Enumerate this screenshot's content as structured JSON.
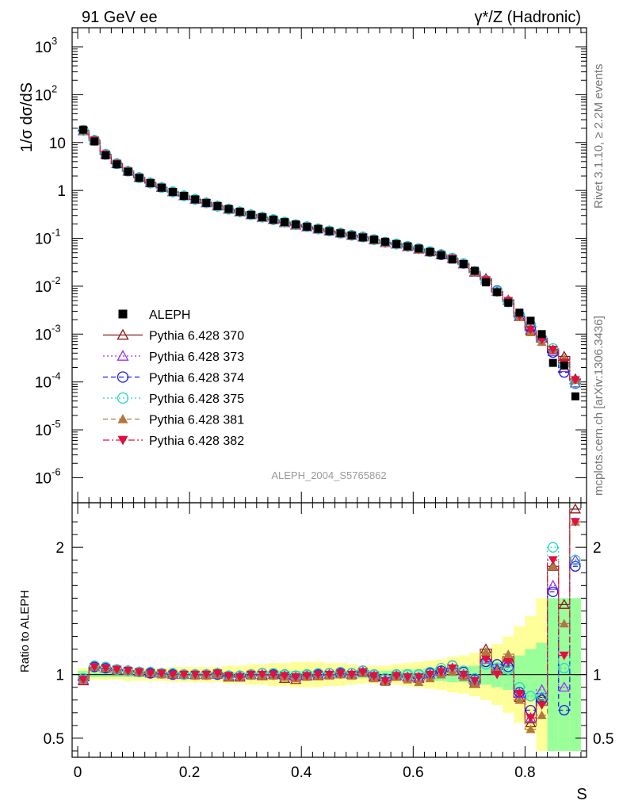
{
  "header": {
    "left": "91 GeV ee",
    "right": "γ*/Z (Hadronic)",
    "side_top": "Rivet 3.1.10, ≥ 2.2M events",
    "side_bottom": "mcplots.cern.ch [arXiv:1306.3436]",
    "analysis": "ALEPH_2004_S5765862"
  },
  "colors": {
    "data": "#000000",
    "p370": "#8b1a1a",
    "p373": "#9b30ff",
    "p374": "#1a1aee",
    "p375": "#20d8c0",
    "p381": "#b07840",
    "p382": "#e01040",
    "band_yellow": "#ffff99",
    "band_green": "#99ff99"
  },
  "chart_data": {
    "type": "scatter",
    "title": "",
    "xlabel": "S",
    "ylabel_main": "1/σ  dσ/dS",
    "ylabel_ratio": "Ratio to ALEPH",
    "xlim": [
      -0.01,
      0.91
    ],
    "ylim_main": [
      3e-07,
      2500
    ],
    "ylim_ratio": [
      0.35,
      2.35
    ],
    "x_ticks": [
      "0",
      "0.2",
      "0.4",
      "0.6",
      "0.8"
    ],
    "x_tick_values": [
      0,
      0.2,
      0.4,
      0.6,
      0.8
    ],
    "y_ticks_main": [
      "10^3",
      "10^2",
      "10",
      "1",
      "10^-1",
      "10^-2",
      "10^-3",
      "10^-4",
      "10^-5",
      "10^-6"
    ],
    "y_ticks_ratio": [
      "2",
      "1",
      "0.5"
    ],
    "x": [
      0.01,
      0.03,
      0.05,
      0.07,
      0.09,
      0.11,
      0.13,
      0.15,
      0.17,
      0.19,
      0.21,
      0.23,
      0.25,
      0.27,
      0.29,
      0.31,
      0.33,
      0.35,
      0.37,
      0.39,
      0.41,
      0.43,
      0.45,
      0.47,
      0.49,
      0.51,
      0.53,
      0.55,
      0.57,
      0.59,
      0.61,
      0.63,
      0.65,
      0.67,
      0.69,
      0.71,
      0.73,
      0.75,
      0.77,
      0.79,
      0.81,
      0.83,
      0.85,
      0.87,
      0.89
    ],
    "data_values": [
      18.5,
      10.5,
      5.4,
      3.5,
      2.45,
      1.82,
      1.42,
      1.14,
      0.93,
      0.77,
      0.65,
      0.55,
      0.47,
      0.41,
      0.36,
      0.31,
      0.275,
      0.245,
      0.218,
      0.195,
      0.175,
      0.157,
      0.141,
      0.127,
      0.115,
      0.104,
      0.094,
      0.085,
      0.076,
      0.068,
      0.061,
      0.052,
      0.044,
      0.036,
      0.029,
      0.021,
      0.012,
      0.0075,
      0.0045,
      0.0028,
      0.0019,
      0.001,
      0.00025,
      0.00022,
      5e-05
    ],
    "ratio_band_inner": [
      0.03,
      0.02,
      0.02,
      0.02,
      0.02,
      0.02,
      0.02,
      0.02,
      0.02,
      0.02,
      0.02,
      0.02,
      0.02,
      0.02,
      0.02,
      0.02,
      0.03,
      0.03,
      0.03,
      0.03,
      0.03,
      0.03,
      0.03,
      0.03,
      0.03,
      0.03,
      0.03,
      0.03,
      0.03,
      0.04,
      0.04,
      0.05,
      0.05,
      0.06,
      0.06,
      0.07,
      0.08,
      0.1,
      0.12,
      0.15,
      0.2,
      0.25,
      0.6,
      0.6,
      0.6
    ],
    "ratio_band_outer": [
      0.05,
      0.04,
      0.04,
      0.04,
      0.05,
      0.05,
      0.05,
      0.05,
      0.06,
      0.06,
      0.06,
      0.06,
      0.06,
      0.07,
      0.07,
      0.08,
      0.08,
      0.09,
      0.09,
      0.1,
      0.1,
      0.1,
      0.09,
      0.09,
      0.08,
      0.07,
      0.07,
      0.07,
      0.08,
      0.09,
      0.1,
      0.11,
      0.12,
      0.14,
      0.15,
      0.17,
      0.2,
      0.24,
      0.3,
      0.38,
      0.46,
      0.6,
      0.6,
      0.6,
      0.6
    ],
    "series": [
      {
        "name": "ALEPH",
        "key": "data",
        "marker": "square-filled",
        "line": "none"
      },
      {
        "name": "Pythia 6.428 370",
        "key": "p370",
        "marker": "triangle-up-open",
        "line": "solid",
        "ratio": [
          0.95,
          1.06,
          1.05,
          1.03,
          1.03,
          1.02,
          1.02,
          1.01,
          1.01,
          1.0,
          1.0,
          1.0,
          1.01,
          0.98,
          0.98,
          1.0,
          0.99,
          1.0,
          0.97,
          0.96,
          0.99,
          0.99,
          1.0,
          1.01,
          1.0,
          1.02,
          0.98,
          0.95,
          0.99,
          0.98,
          0.97,
          1.0,
          1.03,
          1.05,
          1.0,
          0.93,
          1.2,
          1.04,
          1.14,
          0.82,
          0.62,
          0.82,
          1.85,
          1.55,
          2.3
        ]
      },
      {
        "name": "Pythia 6.428 373",
        "key": "p373",
        "marker": "triangle-up-open",
        "line": "dotted",
        "ratio": [
          0.96,
          1.06,
          1.05,
          1.04,
          1.03,
          1.02,
          1.01,
          1.01,
          1.0,
          1.0,
          1.0,
          1.0,
          1.0,
          0.99,
          0.99,
          1.0,
          1.0,
          1.0,
          0.99,
          0.98,
          0.99,
          1.0,
          1.0,
          1.01,
          1.0,
          1.02,
          0.99,
          0.96,
          0.99,
          0.98,
          0.98,
          1.0,
          1.02,
          1.05,
          1.0,
          0.95,
          1.12,
          1.05,
          1.1,
          0.85,
          0.66,
          0.88,
          1.7,
          0.9,
          1.9
        ]
      },
      {
        "name": "Pythia 6.428 374",
        "key": "p374",
        "marker": "circle-open",
        "line": "dashed",
        "ratio": [
          0.97,
          1.06,
          1.05,
          1.04,
          1.03,
          1.02,
          1.01,
          1.01,
          1.0,
          1.0,
          1.0,
          1.0,
          1.0,
          0.99,
          0.99,
          1.0,
          1.01,
          1.0,
          1.0,
          0.99,
          1.0,
          1.0,
          1.01,
          1.01,
          1.01,
          1.03,
          1.0,
          0.97,
          1.0,
          1.0,
          1.0,
          1.01,
          1.03,
          1.07,
          1.02,
          0.96,
          1.1,
          1.08,
          1.06,
          0.86,
          0.72,
          0.8,
          1.65,
          0.72,
          1.85
        ]
      },
      {
        "name": "Pythia 6.428 375",
        "key": "p375",
        "marker": "circle-open",
        "line": "dotted",
        "ratio": [
          0.97,
          1.07,
          1.06,
          1.04,
          1.03,
          1.02,
          1.02,
          1.01,
          1.01,
          1.0,
          1.0,
          1.0,
          1.01,
          0.99,
          0.99,
          1.0,
          1.01,
          1.01,
          1.0,
          0.99,
          1.0,
          1.01,
          1.01,
          1.02,
          1.01,
          1.03,
          1.0,
          0.97,
          1.0,
          1.0,
          1.0,
          1.02,
          1.05,
          1.07,
          1.03,
          0.97,
          1.08,
          1.05,
          1.04,
          0.9,
          0.83,
          0.82,
          2.0,
          1.05,
          1.9
        ]
      },
      {
        "name": "Pythia 6.428 381",
        "key": "p381",
        "marker": "triangle-up-filled",
        "line": "dashed",
        "ratio": [
          0.96,
          1.06,
          1.05,
          1.04,
          1.03,
          1.02,
          1.01,
          1.0,
          1.0,
          1.0,
          0.99,
          0.99,
          1.0,
          0.98,
          0.98,
          0.99,
          0.99,
          0.99,
          0.98,
          0.97,
          0.98,
          0.99,
          0.99,
          1.0,
          0.99,
          1.01,
          0.97,
          0.94,
          0.98,
          0.96,
          0.94,
          0.97,
          1.0,
          1.02,
          0.98,
          0.93,
          1.18,
          1.03,
          1.16,
          0.8,
          0.57,
          0.68,
          1.85,
          1.4,
          2.2
        ]
      },
      {
        "name": "Pythia 6.428 382",
        "key": "p382",
        "marker": "triangle-down-filled",
        "line": "dashdot",
        "ratio": [
          0.96,
          1.06,
          1.05,
          1.04,
          1.03,
          1.02,
          1.01,
          1.01,
          1.0,
          1.0,
          1.0,
          1.0,
          1.01,
          0.99,
          0.98,
          1.0,
          1.0,
          1.0,
          0.99,
          0.98,
          0.99,
          1.0,
          1.0,
          1.01,
          1.0,
          1.02,
          0.99,
          0.95,
          0.99,
          0.98,
          0.98,
          1.0,
          1.02,
          1.05,
          1.0,
          0.95,
          1.12,
          1.0,
          1.1,
          0.85,
          0.66,
          0.76,
          1.9,
          1.15,
          2.2
        ]
      }
    ]
  }
}
